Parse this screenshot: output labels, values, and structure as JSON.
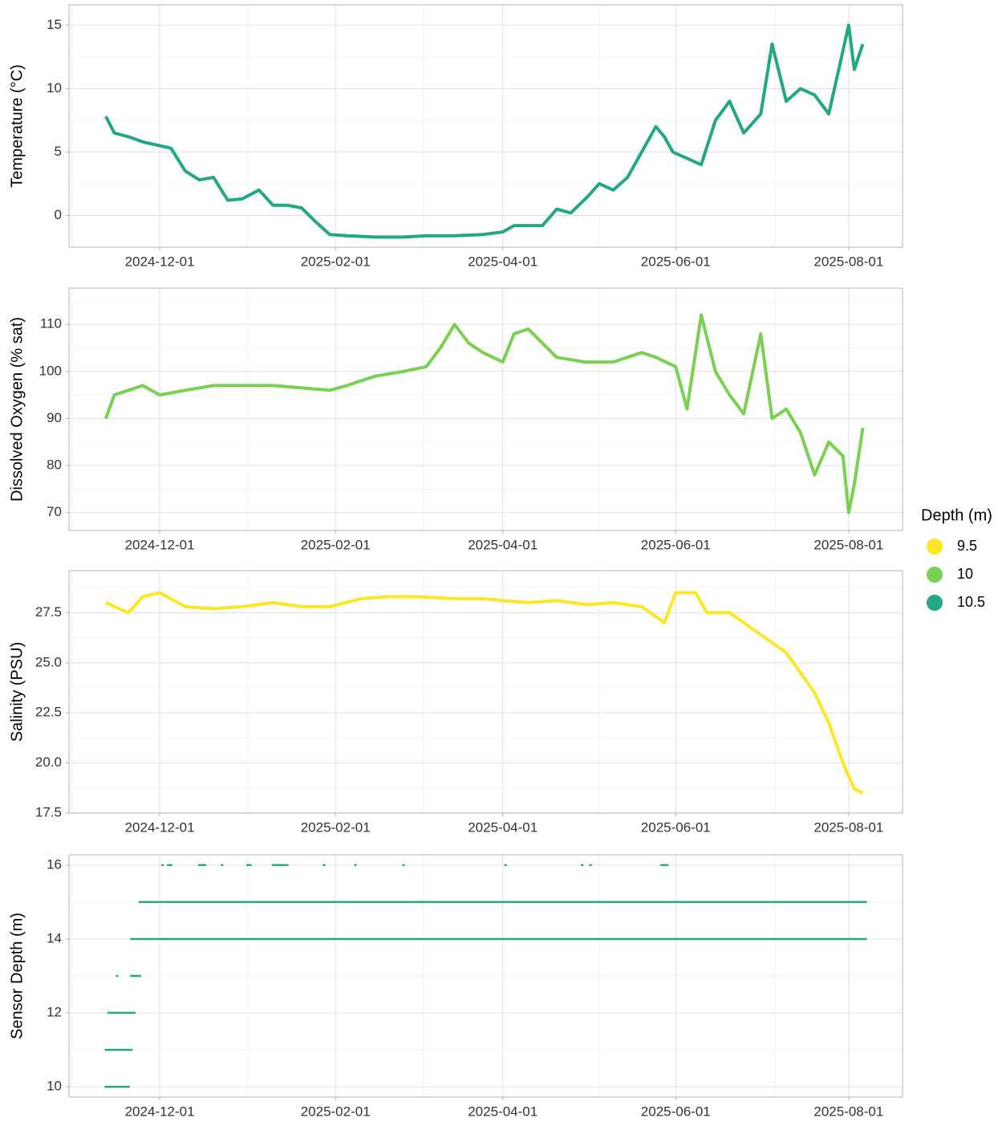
{
  "chart_data": [
    {
      "type": "line",
      "y_label": "Temperature (°C)",
      "color": "#22A884",
      "xlim": [
        "2024-10-30",
        "2025-08-20"
      ],
      "xticks": [
        "2024-12-01",
        "2025-02-01",
        "2025-04-01",
        "2025-06-01",
        "2025-08-01"
      ],
      "ylim": [
        -2.5,
        16.6
      ],
      "yticks": [
        0,
        5,
        10,
        15
      ],
      "grid": true,
      "x": [
        "2024-11-12",
        "2024-11-15",
        "2024-11-20",
        "2024-11-25",
        "2024-12-01",
        "2024-12-05",
        "2024-12-10",
        "2024-12-15",
        "2024-12-20",
        "2024-12-25",
        "2024-12-30",
        "2025-01-05",
        "2025-01-10",
        "2025-01-15",
        "2025-01-20",
        "2025-01-25",
        "2025-01-30",
        "2025-02-05",
        "2025-02-15",
        "2025-02-25",
        "2025-03-05",
        "2025-03-15",
        "2025-03-25",
        "2025-04-01",
        "2025-04-05",
        "2025-04-15",
        "2025-04-20",
        "2025-04-25",
        "2025-05-01",
        "2025-05-05",
        "2025-05-10",
        "2025-05-15",
        "2025-05-20",
        "2025-05-25",
        "2025-05-28",
        "2025-05-31",
        "2025-06-05",
        "2025-06-10",
        "2025-06-15",
        "2025-06-20",
        "2025-06-25",
        "2025-07-01",
        "2025-07-05",
        "2025-07-10",
        "2025-07-15",
        "2025-07-20",
        "2025-07-25",
        "2025-07-30",
        "2025-08-01",
        "2025-08-03",
        "2025-08-06"
      ],
      "values": [
        7.8,
        6.5,
        6.2,
        5.8,
        5.5,
        5.3,
        3.5,
        2.8,
        3.0,
        1.2,
        1.3,
        2.0,
        0.8,
        0.8,
        0.6,
        -0.5,
        -1.5,
        -1.6,
        -1.7,
        -1.7,
        -1.6,
        -1.6,
        -1.5,
        -1.3,
        -0.8,
        -0.8,
        0.5,
        0.2,
        1.5,
        2.5,
        2.0,
        3.0,
        5.0,
        7.0,
        6.2,
        5.0,
        4.5,
        4.0,
        7.5,
        9.0,
        6.5,
        8.0,
        13.5,
        9.0,
        10.0,
        9.5,
        8.0,
        13.0,
        15.0,
        11.5,
        13.5
      ]
    },
    {
      "type": "line",
      "y_label": "Dissolved Oxygen (% sat)",
      "color": "#7AD151",
      "xlim": [
        "2024-10-30",
        "2025-08-20"
      ],
      "xticks": [
        "2024-12-01",
        "2025-02-01",
        "2025-04-01",
        "2025-06-01",
        "2025-08-01"
      ],
      "ylim": [
        66.2,
        117.7
      ],
      "yticks": [
        70,
        80,
        90,
        100,
        110
      ],
      "grid": true,
      "x": [
        "2024-11-12",
        "2024-11-15",
        "2024-11-20",
        "2024-11-25",
        "2024-12-01",
        "2024-12-10",
        "2024-12-20",
        "2024-12-30",
        "2025-01-10",
        "2025-01-20",
        "2025-01-30",
        "2025-02-05",
        "2025-02-15",
        "2025-02-25",
        "2025-03-05",
        "2025-03-10",
        "2025-03-15",
        "2025-03-20",
        "2025-03-25",
        "2025-04-01",
        "2025-04-05",
        "2025-04-10",
        "2025-04-15",
        "2025-04-20",
        "2025-04-30",
        "2025-05-10",
        "2025-05-20",
        "2025-05-25",
        "2025-06-01",
        "2025-06-05",
        "2025-06-10",
        "2025-06-15",
        "2025-06-20",
        "2025-06-25",
        "2025-07-01",
        "2025-07-05",
        "2025-07-10",
        "2025-07-15",
        "2025-07-20",
        "2025-07-25",
        "2025-07-30",
        "2025-08-01",
        "2025-08-03",
        "2025-08-06"
      ],
      "values": [
        90,
        95,
        96,
        97,
        95,
        96,
        97,
        97,
        97,
        96.5,
        96,
        97,
        99,
        100,
        101,
        105,
        110,
        106,
        104,
        102,
        108,
        109,
        106,
        103,
        102,
        102,
        104,
        103,
        101,
        92,
        112,
        100,
        95,
        91,
        108,
        90,
        92,
        87,
        78,
        85,
        82,
        70,
        76,
        88
      ]
    },
    {
      "type": "line",
      "y_label": "Salinity (PSU)",
      "color": "#FDE725",
      "xlim": [
        "2024-10-30",
        "2025-08-20"
      ],
      "xticks": [
        "2024-12-01",
        "2025-02-01",
        "2025-04-01",
        "2025-06-01",
        "2025-08-01"
      ],
      "ylim": [
        17.5,
        29.6
      ],
      "yticks": [
        17.5,
        {
          "value": 20,
          "label": "20.0"
        },
        22.5,
        {
          "value": 25,
          "label": "25.0"
        },
        27.5
      ],
      "grid": true,
      "x": [
        "2024-11-12",
        "2024-11-20",
        "2024-11-25",
        "2024-12-01",
        "2024-12-10",
        "2024-12-20",
        "2024-12-30",
        "2025-01-10",
        "2025-01-20",
        "2025-01-30",
        "2025-02-10",
        "2025-02-20",
        "2025-03-01",
        "2025-03-15",
        "2025-03-25",
        "2025-04-01",
        "2025-04-10",
        "2025-04-20",
        "2025-05-01",
        "2025-05-10",
        "2025-05-20",
        "2025-05-28",
        "2025-06-01",
        "2025-06-08",
        "2025-06-12",
        "2025-06-20",
        "2025-06-30",
        "2025-07-10",
        "2025-07-20",
        "2025-07-25",
        "2025-07-30",
        "2025-08-03",
        "2025-08-06"
      ],
      "values": [
        28,
        27.5,
        28.3,
        28.5,
        27.8,
        27.7,
        27.8,
        28,
        27.8,
        27.8,
        28.2,
        28.3,
        28.3,
        28.2,
        28.2,
        28.1,
        28.0,
        28.1,
        27.9,
        28.0,
        27.8,
        27.0,
        28.5,
        28.5,
        27.5,
        27.5,
        26.5,
        25.5,
        23.5,
        22,
        20,
        18.7,
        18.5
      ]
    },
    {
      "type": "ranges",
      "y_label": "Sensor Depth (m)",
      "color": "#22A884",
      "xlim": [
        "2024-10-30",
        "2025-08-20"
      ],
      "xticks": [
        "2024-12-01",
        "2025-02-01",
        "2025-04-01",
        "2025-06-01",
        "2025-08-01"
      ],
      "ylim": [
        9.72,
        16.28
      ],
      "yticks": [
        10,
        12,
        14,
        16
      ],
      "grid": true,
      "ranges": [
        {
          "x": [
            "2024-11-12",
            "2024-11-20"
          ],
          "value": 10
        },
        {
          "x": [
            "2024-11-12",
            "2024-11-21"
          ],
          "value": 11
        },
        {
          "x": [
            "2024-11-13",
            "2024-11-22"
          ],
          "value": 12
        },
        {
          "x": [
            "2024-11-16",
            "2024-11-16"
          ],
          "value": 13
        },
        {
          "x": [
            "2024-11-21",
            "2024-11-24"
          ],
          "value": 13
        },
        {
          "x": [
            "2024-11-21",
            "2025-08-07"
          ],
          "value": 14
        },
        {
          "x": [
            "2024-11-24",
            "2025-08-07"
          ],
          "value": 15
        },
        {
          "x": [
            "2024-12-02",
            "2024-12-02"
          ],
          "value": 16
        },
        {
          "x": [
            "2024-12-04",
            "2024-12-05"
          ],
          "value": 16
        },
        {
          "x": [
            "2024-12-15",
            "2024-12-17"
          ],
          "value": 16
        },
        {
          "x": [
            "2024-12-23",
            "2024-12-23"
          ],
          "value": 16
        },
        {
          "x": [
            "2025-01-01",
            "2025-01-02"
          ],
          "value": 16
        },
        {
          "x": [
            "2025-01-10",
            "2025-01-15"
          ],
          "value": 16
        },
        {
          "x": [
            "2025-01-28",
            "2025-01-28"
          ],
          "value": 16
        },
        {
          "x": [
            "2025-02-08",
            "2025-02-08"
          ],
          "value": 16
        },
        {
          "x": [
            "2025-02-25",
            "2025-02-25"
          ],
          "value": 16
        },
        {
          "x": [
            "2025-04-02",
            "2025-04-02"
          ],
          "value": 16
        },
        {
          "x": [
            "2025-04-29",
            "2025-04-29"
          ],
          "value": 16
        },
        {
          "x": [
            "2025-05-02",
            "2025-05-02"
          ],
          "value": 16
        },
        {
          "x": [
            "2025-05-27",
            "2025-05-29"
          ],
          "value": 16
        }
      ]
    }
  ],
  "legend": {
    "title": "Depth (m)",
    "items": [
      {
        "label": 9.5,
        "color": "#FDE725"
      },
      {
        "label": 10,
        "color": "#7AD151"
      },
      {
        "label": 10.5,
        "color": "#22A884"
      }
    ]
  }
}
